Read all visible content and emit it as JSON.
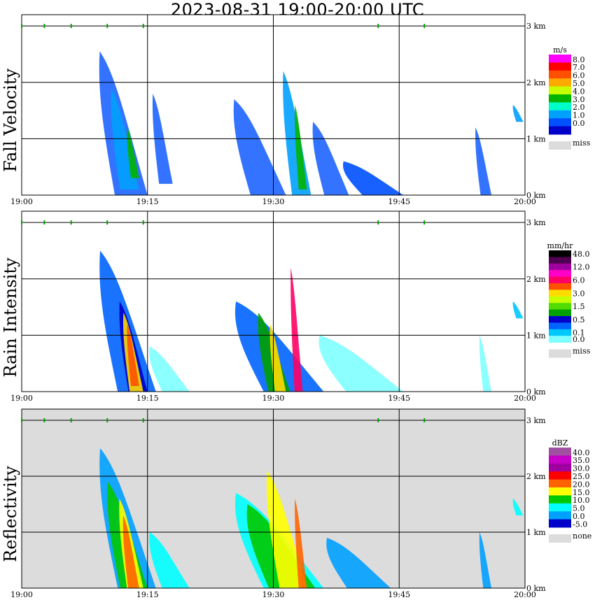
{
  "title": "2023-08-31   19:00-20:00 UTC",
  "time_ticks": [
    "19:00",
    "19:15",
    "19:30",
    "19:45",
    "20:00"
  ],
  "height_ticks": [
    "0 km",
    "1 km",
    "2 km",
    "3 km"
  ],
  "colors": {
    "background": "#ffffff",
    "missing_fill": "#dcdcdc",
    "marker_green": "#00a000"
  },
  "chart_data": [
    {
      "type": "heatmap",
      "name": "fall-velocity",
      "ylabel": "Fall Velocity",
      "units": "m/s",
      "x_range": [
        "19:00",
        "20:00"
      ],
      "y_range_km": [
        0,
        3.2
      ],
      "legend": [
        {
          "label": "8.0",
          "color": "#ff00ff"
        },
        {
          "label": "7.0",
          "color": "#ff0000"
        },
        {
          "label": "6.0",
          "color": "#ff5000"
        },
        {
          "label": "5.0",
          "color": "#ffaa00"
        },
        {
          "label": "4.0",
          "color": "#c8ff00"
        },
        {
          "label": "3.0",
          "color": "#00b400"
        },
        {
          "label": "2.0",
          "color": "#00ffc8"
        },
        {
          "label": "1.0",
          "color": "#00a0ff"
        },
        {
          "label": "0.0",
          "color": "#0050ff"
        },
        {
          "label": "",
          "color": "#0000c8"
        }
      ],
      "missing_label": "miss",
      "background": "#ffffff",
      "echoes": [
        {
          "t": [
            9.0,
            15.0
          ],
          "top_km": 2.55,
          "base_km": 0.0,
          "color": "#1e64ff"
        },
        {
          "t": [
            10.5,
            14.0
          ],
          "top_km": 1.9,
          "base_km": 0.1,
          "color": "#00a0ff"
        },
        {
          "t": [
            12.5,
            14.0
          ],
          "top_km": 1.2,
          "base_km": 0.3,
          "color": "#00b400"
        },
        {
          "t": [
            15.5,
            18.0
          ],
          "top_km": 1.8,
          "base_km": 0.2,
          "color": "#1e64ff"
        },
        {
          "t": [
            25.0,
            31.5
          ],
          "top_km": 1.7,
          "base_km": 0.0,
          "color": "#1e64ff"
        },
        {
          "t": [
            31.0,
            34.5
          ],
          "top_km": 2.2,
          "base_km": 0.0,
          "color": "#00a0ff"
        },
        {
          "t": [
            32.5,
            34.0
          ],
          "top_km": 1.6,
          "base_km": 0.1,
          "color": "#00b400"
        },
        {
          "t": [
            34.5,
            39.0
          ],
          "top_km": 1.3,
          "base_km": 0.0,
          "color": "#1e64ff"
        },
        {
          "t": [
            38.0,
            45.5
          ],
          "top_km": 0.6,
          "base_km": 0.0,
          "color": "#0050ff"
        },
        {
          "t": [
            54.0,
            56.0
          ],
          "top_km": 1.2,
          "base_km": 0.0,
          "color": "#1e64ff"
        },
        {
          "t": [
            58.5,
            59.8
          ],
          "top_km": 1.6,
          "base_km": 1.3,
          "color": "#00a0ff"
        }
      ]
    },
    {
      "type": "heatmap",
      "name": "rain-intensity",
      "ylabel": "Rain Intensity",
      "units": "mm/hr",
      "x_range": [
        "19:00",
        "20:00"
      ],
      "y_range_km": [
        0,
        3.2
      ],
      "legend": [
        {
          "label": "48.0",
          "color": "#000000"
        },
        {
          "label": "",
          "color": "#500050"
        },
        {
          "label": "12.0",
          "color": "#a000a0"
        },
        {
          "label": "",
          "color": "#ff00c8"
        },
        {
          "label": "6.0",
          "color": "#ff0064"
        },
        {
          "label": "",
          "color": "#ff5000"
        },
        {
          "label": "3.0",
          "color": "#ffdc00"
        },
        {
          "label": "",
          "color": "#c8ff00"
        },
        {
          "label": "1.5",
          "color": "#50dc00"
        },
        {
          "label": "",
          "color": "#00a000"
        },
        {
          "label": "0.5",
          "color": "#0000c8"
        },
        {
          "label": "",
          "color": "#0064ff"
        },
        {
          "label": "0.1",
          "color": "#00c8ff"
        },
        {
          "label": "0.0",
          "color": "#80ffff"
        }
      ],
      "missing_label": "miss",
      "background": "#ffffff",
      "echoes": [
        {
          "t": [
            9.0,
            16.0
          ],
          "top_km": 2.5,
          "base_km": 0.0,
          "color": "#0064ff"
        },
        {
          "t": [
            11.5,
            15.0
          ],
          "top_km": 1.6,
          "base_km": 0.0,
          "color": "#0000c8"
        },
        {
          "t": [
            12.0,
            14.5
          ],
          "top_km": 1.4,
          "base_km": 0.0,
          "color": "#ffdc00"
        },
        {
          "t": [
            12.5,
            14.0
          ],
          "top_km": 1.2,
          "base_km": 0.1,
          "color": "#ff5000"
        },
        {
          "t": [
            15.0,
            20.0
          ],
          "top_km": 0.8,
          "base_km": 0.0,
          "color": "#80ffff"
        },
        {
          "t": [
            25.0,
            36.0
          ],
          "top_km": 1.6,
          "base_km": 0.0,
          "color": "#0064ff"
        },
        {
          "t": [
            28.0,
            32.0
          ],
          "top_km": 1.4,
          "base_km": 0.0,
          "color": "#00a000"
        },
        {
          "t": [
            29.5,
            31.5
          ],
          "top_km": 1.2,
          "base_km": 0.0,
          "color": "#ffdc00"
        },
        {
          "t": [
            32.0,
            33.5
          ],
          "top_km": 2.2,
          "base_km": 0.0,
          "color": "#ff0064"
        },
        {
          "t": [
            35.0,
            45.5
          ],
          "top_km": 1.0,
          "base_km": 0.0,
          "color": "#80ffff"
        },
        {
          "t": [
            54.5,
            56.0
          ],
          "top_km": 1.0,
          "base_km": 0.0,
          "color": "#80ffff"
        },
        {
          "t": [
            58.5,
            59.8
          ],
          "top_km": 1.6,
          "base_km": 1.3,
          "color": "#00c8ff"
        }
      ]
    },
    {
      "type": "heatmap",
      "name": "reflectivity",
      "ylabel": "Reflectivity",
      "units": "dBZ",
      "x_range": [
        "19:00",
        "20:00"
      ],
      "y_range_km": [
        0,
        3.2
      ],
      "legend": [
        {
          "label": "40.0",
          "color": "#a050a0"
        },
        {
          "label": "35.0",
          "color": "#c800c8"
        },
        {
          "label": "30.0",
          "color": "#a000a0"
        },
        {
          "label": "25.0",
          "color": "#ff0000"
        },
        {
          "label": "20.0",
          "color": "#ff6400"
        },
        {
          "label": "15.0",
          "color": "#ffff00"
        },
        {
          "label": "10.0",
          "color": "#00c800"
        },
        {
          "label": "5.0",
          "color": "#00ffff"
        },
        {
          "label": "0.0",
          "color": "#00a0ff"
        },
        {
          "label": "-5.0",
          "color": "#0000c8"
        }
      ],
      "missing_label": "none",
      "background": "#dcdcdc",
      "echoes": [
        {
          "t": [
            9.0,
            16.0
          ],
          "top_km": 2.5,
          "base_km": 0.0,
          "color": "#00a0ff"
        },
        {
          "t": [
            10.0,
            15.0
          ],
          "top_km": 1.9,
          "base_km": 0.0,
          "color": "#00c800"
        },
        {
          "t": [
            11.5,
            14.5
          ],
          "top_km": 1.6,
          "base_km": 0.0,
          "color": "#ffff00"
        },
        {
          "t": [
            12.0,
            14.0
          ],
          "top_km": 1.3,
          "base_km": 0.0,
          "color": "#ff6400"
        },
        {
          "t": [
            15.0,
            20.0
          ],
          "top_km": 1.0,
          "base_km": 0.0,
          "color": "#00ffff"
        },
        {
          "t": [
            25.0,
            36.0
          ],
          "top_km": 1.7,
          "base_km": 0.0,
          "color": "#00ffff"
        },
        {
          "t": [
            26.5,
            35.0
          ],
          "top_km": 1.5,
          "base_km": 0.0,
          "color": "#00c800"
        },
        {
          "t": [
            29.0,
            34.0
          ],
          "top_km": 2.1,
          "base_km": 0.0,
          "color": "#ffff00"
        },
        {
          "t": [
            32.5,
            34.0
          ],
          "top_km": 1.6,
          "base_km": 0.0,
          "color": "#ff6400"
        },
        {
          "t": [
            36.0,
            44.0
          ],
          "top_km": 0.9,
          "base_km": 0.0,
          "color": "#00a0ff"
        },
        {
          "t": [
            54.5,
            56.0
          ],
          "top_km": 1.0,
          "base_km": 0.0,
          "color": "#00a0ff"
        },
        {
          "t": [
            58.5,
            59.8
          ],
          "top_km": 1.6,
          "base_km": 1.3,
          "color": "#00ffff"
        }
      ]
    }
  ],
  "top_markers_minutes": [
    0,
    2.7,
    5.9,
    10.2,
    14.5,
    42.5,
    48.0
  ]
}
